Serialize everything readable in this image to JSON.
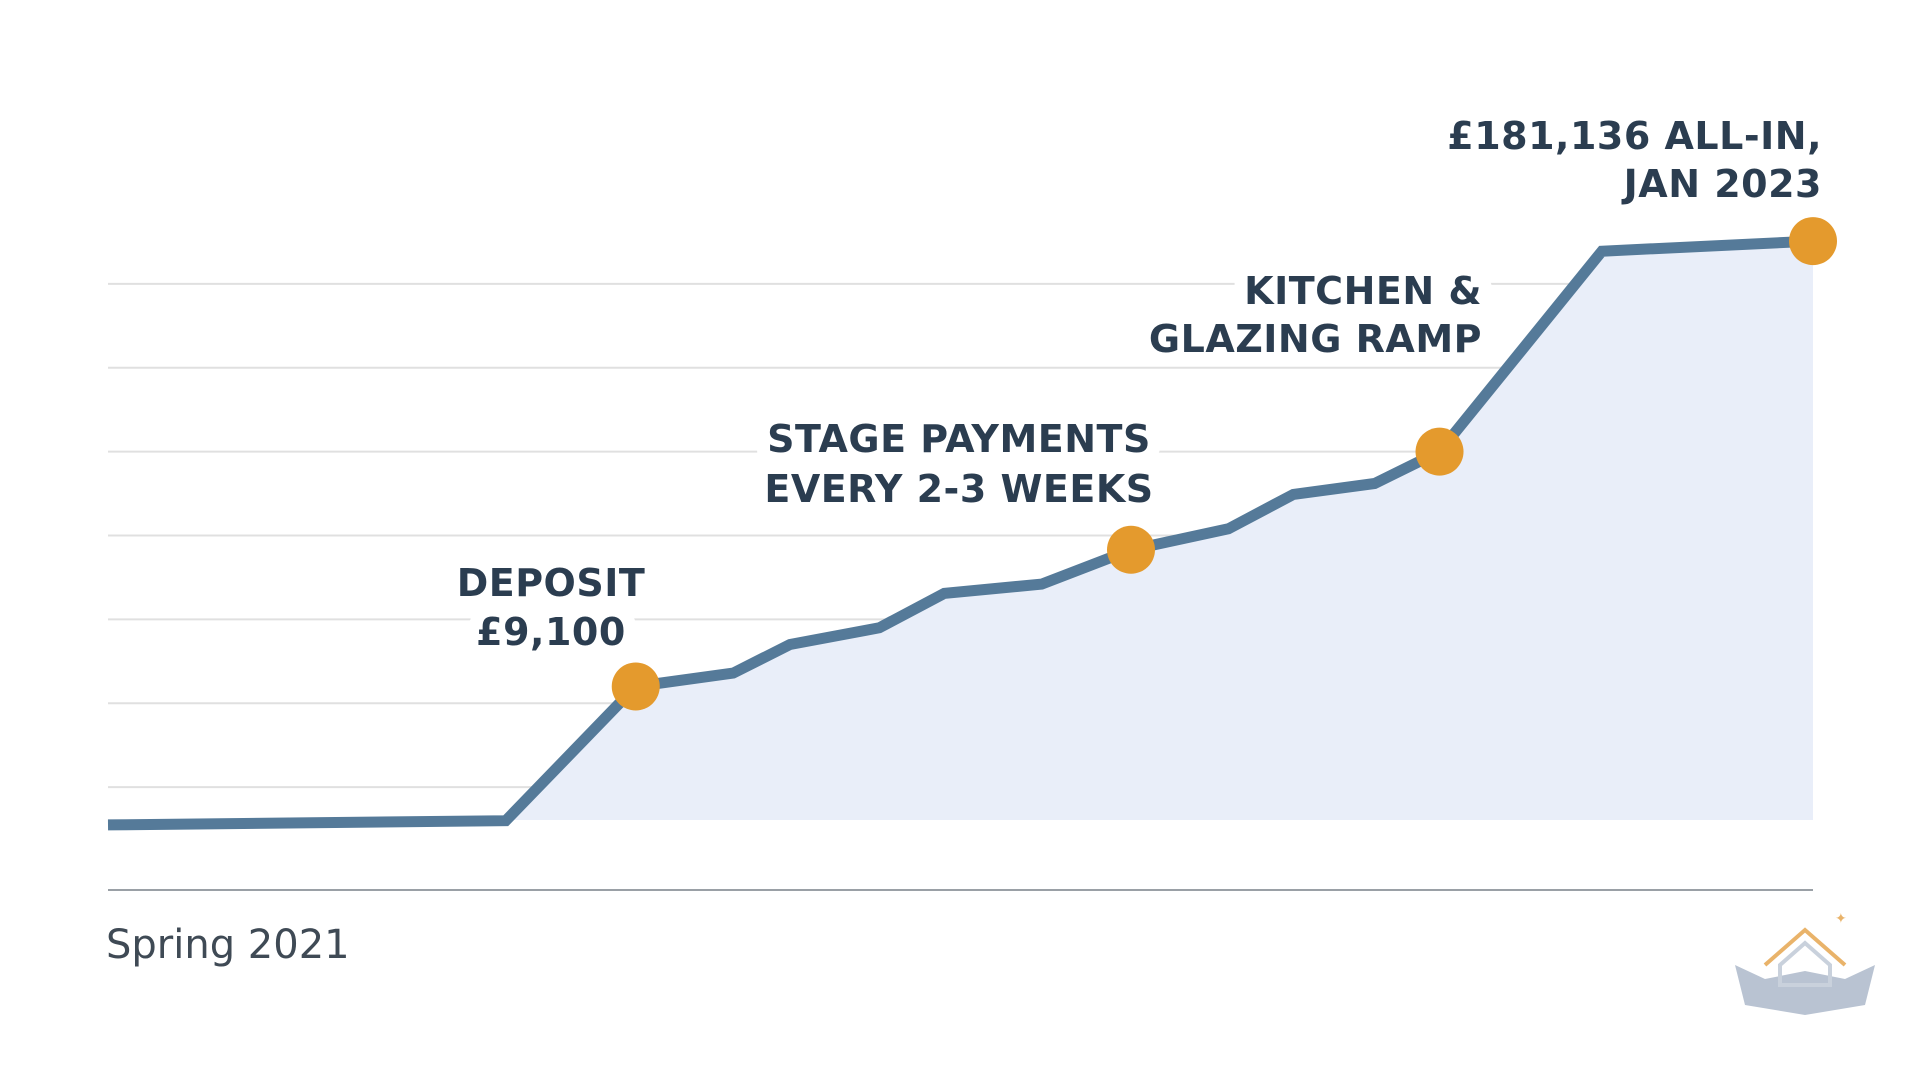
{
  "chart_data": {
    "type": "line",
    "x_label": "Spring 2021",
    "x": [
      0,
      4.9,
      6.5,
      7.7,
      8.4,
      9.5,
      10.3,
      11.5,
      12.6,
      13.8,
      14.6,
      15.6,
      16.4,
      18.4,
      21
    ],
    "series": [
      {
        "color": "#557a99",
        "values": [
          0.55,
          0.6,
          2.2,
          2.36,
          2.7,
          2.9,
          3.31,
          3.42,
          3.83,
          4.08,
          4.49,
          4.62,
          5.0,
          7.39,
          7.51
        ]
      }
    ],
    "xlim": [
      0,
      21
    ],
    "ylim": [
      0,
      8
    ],
    "yticks": [
      1,
      2,
      3,
      4,
      5,
      6,
      7
    ],
    "grid": true,
    "area_color": "#e9eef9",
    "marker_color": "#e49a2d",
    "annotations": [
      {
        "lines": [
          "DEPOSIT",
          "£9,100"
        ]
      },
      {
        "lines": [
          "STAGE PAYMENTS",
          "EVERY 2-3 WEEKS"
        ]
      },
      {
        "lines": [
          "KITCHEN &",
          "GLAZING RAMP"
        ]
      },
      {
        "lines": [
          "£181,136 ALL-IN,",
          "JAN 2023"
        ]
      }
    ]
  }
}
